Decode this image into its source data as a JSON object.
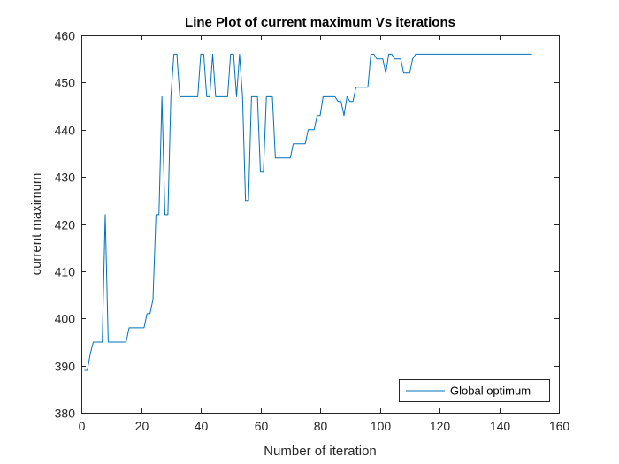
{
  "chart_data": {
    "type": "line",
    "title": "Line Plot of current maximum Vs iterations",
    "xlabel": "Number of iteration",
    "ylabel": "current maximum",
    "xlim": [
      0,
      160
    ],
    "ylim": [
      380,
      460
    ],
    "xticks": [
      0,
      20,
      40,
      60,
      80,
      100,
      120,
      140,
      160
    ],
    "yticks": [
      380,
      390,
      400,
      410,
      420,
      430,
      440,
      450,
      460
    ],
    "grid": false,
    "legend_position": "bottom-right",
    "series": [
      {
        "name": "Global optimum",
        "color": "#0072BD",
        "points": [
          [
            1,
            389
          ],
          [
            2,
            389
          ],
          [
            3,
            392.5
          ],
          [
            4,
            395
          ],
          [
            5,
            395
          ],
          [
            6,
            395
          ],
          [
            7,
            395
          ],
          [
            8,
            422
          ],
          [
            9,
            395
          ],
          [
            10,
            395
          ],
          [
            11,
            395
          ],
          [
            12,
            395
          ],
          [
            13,
            395
          ],
          [
            14,
            395
          ],
          [
            15,
            395
          ],
          [
            16,
            398
          ],
          [
            17,
            398
          ],
          [
            18,
            398
          ],
          [
            19,
            398
          ],
          [
            20,
            398
          ],
          [
            21,
            398
          ],
          [
            22,
            401
          ],
          [
            23,
            401
          ],
          [
            24,
            404
          ],
          [
            25,
            422
          ],
          [
            26,
            422
          ],
          [
            27,
            447
          ],
          [
            28,
            422
          ],
          [
            29,
            422
          ],
          [
            30,
            447
          ],
          [
            31,
            456
          ],
          [
            32,
            456
          ],
          [
            33,
            447
          ],
          [
            34,
            447
          ],
          [
            35,
            447
          ],
          [
            36,
            447
          ],
          [
            37,
            447
          ],
          [
            38,
            447
          ],
          [
            39,
            447
          ],
          [
            40,
            456
          ],
          [
            41,
            456
          ],
          [
            42,
            447
          ],
          [
            43,
            447
          ],
          [
            44,
            456
          ],
          [
            45,
            447
          ],
          [
            46,
            447
          ],
          [
            47,
            447
          ],
          [
            48,
            447
          ],
          [
            49,
            447
          ],
          [
            50,
            456
          ],
          [
            51,
            456
          ],
          [
            52,
            447
          ],
          [
            53,
            456
          ],
          [
            54,
            447
          ],
          [
            55,
            425
          ],
          [
            56,
            425
          ],
          [
            57,
            447
          ],
          [
            58,
            447
          ],
          [
            59,
            447
          ],
          [
            60,
            431
          ],
          [
            61,
            431
          ],
          [
            62,
            447
          ],
          [
            63,
            447
          ],
          [
            64,
            447
          ],
          [
            65,
            434
          ],
          [
            66,
            434
          ],
          [
            67,
            434
          ],
          [
            68,
            434
          ],
          [
            69,
            434
          ],
          [
            70,
            434
          ],
          [
            71,
            437
          ],
          [
            72,
            437
          ],
          [
            73,
            437
          ],
          [
            74,
            437
          ],
          [
            75,
            437
          ],
          [
            76,
            440
          ],
          [
            77,
            440
          ],
          [
            78,
            440
          ],
          [
            79,
            443
          ],
          [
            80,
            443
          ],
          [
            81,
            447
          ],
          [
            82,
            447
          ],
          [
            83,
            447
          ],
          [
            84,
            447
          ],
          [
            85,
            447
          ],
          [
            86,
            446
          ],
          [
            87,
            446
          ],
          [
            88,
            443
          ],
          [
            89,
            447
          ],
          [
            90,
            446
          ],
          [
            91,
            446
          ],
          [
            92,
            449
          ],
          [
            93,
            449
          ],
          [
            94,
            449
          ],
          [
            95,
            449
          ],
          [
            96,
            449
          ],
          [
            97,
            456
          ],
          [
            98,
            456
          ],
          [
            99,
            455
          ],
          [
            100,
            455
          ],
          [
            101,
            455
          ],
          [
            102,
            452
          ],
          [
            103,
            456
          ],
          [
            104,
            456
          ],
          [
            105,
            455
          ],
          [
            106,
            455
          ],
          [
            107,
            455
          ],
          [
            108,
            452
          ],
          [
            109,
            452
          ],
          [
            110,
            452
          ],
          [
            111,
            455
          ],
          [
            112,
            456
          ],
          [
            113,
            456
          ],
          [
            120,
            456
          ],
          [
            130,
            456
          ],
          [
            140,
            456
          ],
          [
            151,
            456
          ]
        ]
      }
    ]
  }
}
